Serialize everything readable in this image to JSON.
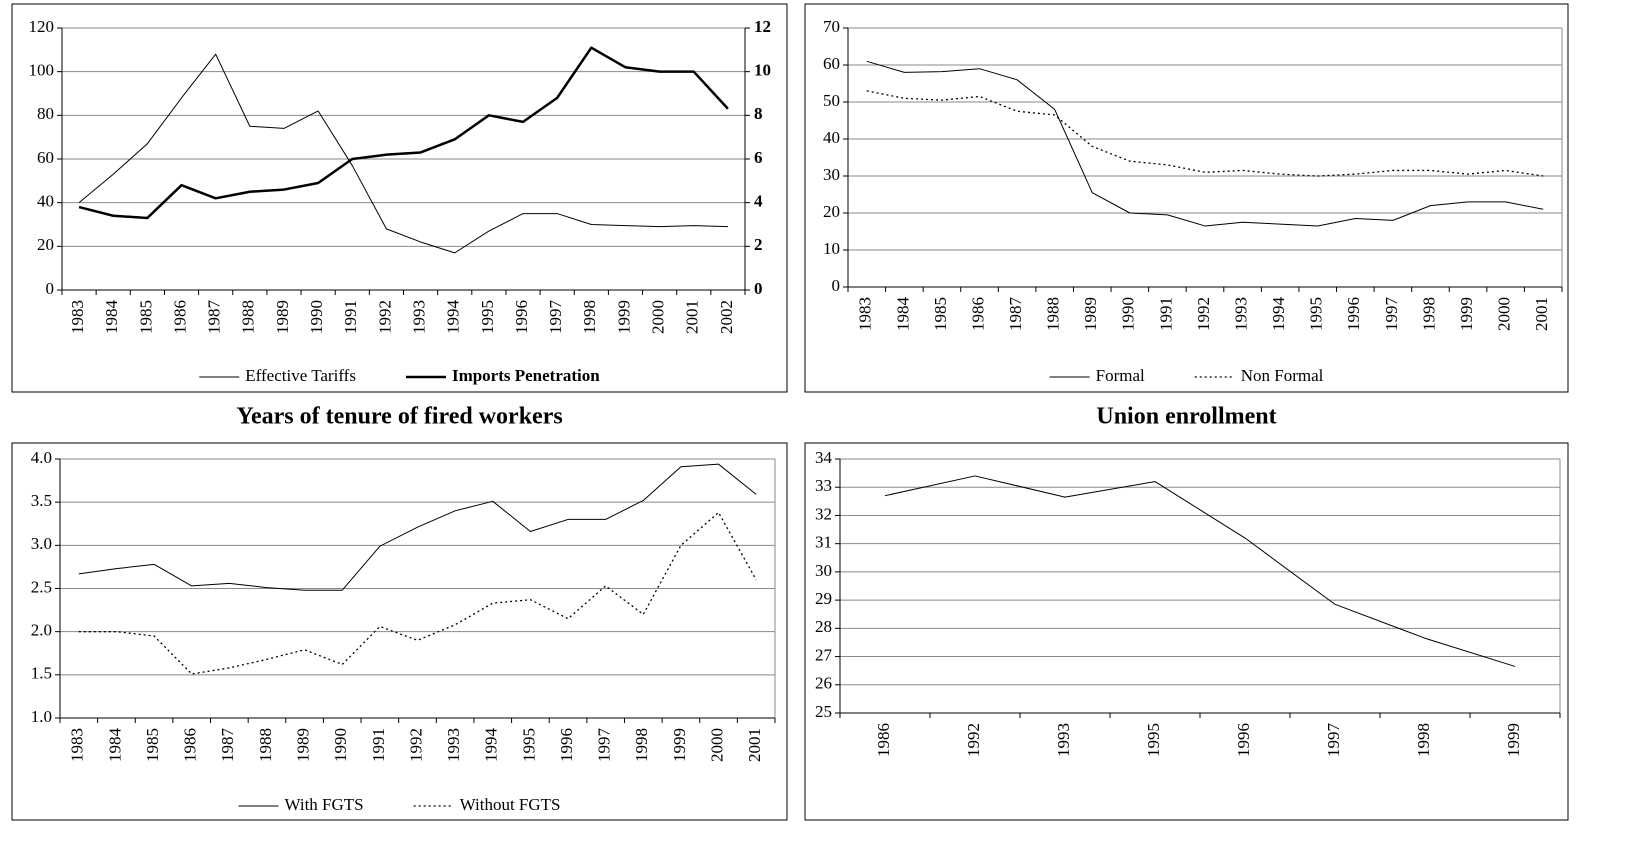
{
  "chart_data": [
    {
      "type": "line",
      "categories": [
        "1983",
        "1984",
        "1985",
        "1986",
        "1987",
        "1988",
        "1989",
        "1990",
        "1991",
        "1992",
        "1993",
        "1994",
        "1995",
        "1996",
        "1997",
        "1998",
        "1999",
        "2000",
        "2001",
        "2002"
      ],
      "series": [
        {
          "name": "Effective Tariffs",
          "color": "#000000",
          "linewidth": 1,
          "linestyle": "solid",
          "values": [
            40,
            53,
            67,
            88,
            108,
            75,
            74,
            82,
            57,
            28,
            22,
            17,
            27,
            35,
            35,
            30,
            29.5,
            29,
            29.5,
            29
          ]
        },
        {
          "name": "Imports Penetration",
          "color": "#000000",
          "linewidth": 2.5,
          "linestyle": "solid",
          "axis": "y2",
          "values": [
            3.8,
            3.4,
            3.3,
            4.8,
            4.2,
            4.5,
            4.6,
            4.9,
            6.0,
            6.2,
            6.3,
            6.9,
            8.0,
            7.7,
            8.8,
            11.1,
            10.2,
            10.0,
            10.0,
            8.3
          ]
        }
      ],
      "ylim": [
        0,
        120
      ],
      "yticks": [
        0,
        20,
        40,
        60,
        80,
        100,
        120
      ],
      "y2lim": [
        0,
        12
      ],
      "y2ticks": [
        0,
        2,
        4,
        6,
        8,
        10,
        12
      ],
      "grid": true
    },
    {
      "type": "line",
      "categories": [
        "1983",
        "1984",
        "1985",
        "1986",
        "1987",
        "1988",
        "1989",
        "1990",
        "1991",
        "1992",
        "1993",
        "1994",
        "1995",
        "1996",
        "1997",
        "1998",
        "1999",
        "2000",
        "2001"
      ],
      "series": [
        {
          "name": "Formal",
          "color": "#000000",
          "linewidth": 1,
          "linestyle": "solid",
          "values": [
            61,
            58,
            58.2,
            59,
            56,
            48,
            25.5,
            20,
            19.5,
            16.5,
            17.5,
            17,
            16.5,
            18.5,
            18,
            22,
            23,
            23,
            21
          ]
        },
        {
          "name": "Non Formal",
          "color": "#000000",
          "linewidth": 1.3,
          "linestyle": "dotted",
          "values": [
            53,
            51,
            50.5,
            51.5,
            47.5,
            46.5,
            38,
            34,
            33,
            31,
            31.5,
            30.5,
            30,
            30.5,
            31.5,
            31.5,
            30.5,
            31.5,
            30
          ]
        }
      ],
      "ylim": [
        0,
        70
      ],
      "yticks": [
        0,
        10,
        20,
        30,
        40,
        50,
        60,
        70
      ],
      "grid": true
    },
    {
      "type": "line",
      "title": "Years of tenure of fired workers",
      "categories": [
        "1983",
        "1984",
        "1985",
        "1986",
        "1987",
        "1988",
        "1989",
        "1990",
        "1991",
        "1992",
        "1993",
        "1994",
        "1995",
        "1996",
        "1997",
        "1998",
        "1999",
        "2000",
        "2001"
      ],
      "series": [
        {
          "name": "With FGTS",
          "color": "#000000",
          "linewidth": 1,
          "linestyle": "solid",
          "values": [
            2.67,
            2.73,
            2.78,
            2.53,
            2.56,
            2.51,
            2.48,
            2.48,
            2.99,
            3.21,
            3.4,
            3.51,
            3.16,
            3.3,
            3.3,
            3.52,
            3.91,
            3.94,
            3.59
          ]
        },
        {
          "name": "Without FGTS",
          "color": "#000000",
          "linewidth": 1.3,
          "linestyle": "dotted",
          "values": [
            2.0,
            2.0,
            1.95,
            1.51,
            1.58,
            1.68,
            1.79,
            1.62,
            2.06,
            1.9,
            2.08,
            2.33,
            2.37,
            2.15,
            2.53,
            2.2,
            3.0,
            3.38,
            2.6
          ]
        }
      ],
      "ylim": [
        1,
        4
      ],
      "yticks": [
        {
          "value": 1,
          "label": "1.0"
        },
        1.5,
        {
          "value": 2,
          "label": "2.0"
        },
        2.5,
        {
          "value": 3,
          "label": "3.0"
        },
        3.5,
        {
          "value": 4,
          "label": "4.0"
        }
      ],
      "grid": true
    },
    {
      "type": "line",
      "title": "Union enrollment",
      "categories": [
        "1986",
        "1992",
        "1993",
        "1995",
        "1996",
        "1997",
        "1998",
        "1999"
      ],
      "values": [
        32.7,
        33.4,
        32.65,
        33.2,
        31.2,
        28.85,
        27.65,
        26.65
      ],
      "color": "#000000",
      "ylim": [
        25,
        34
      ],
      "yticks": [
        25,
        26,
        27,
        28,
        29,
        30,
        31,
        32,
        33,
        34
      ],
      "grid": true
    }
  ]
}
